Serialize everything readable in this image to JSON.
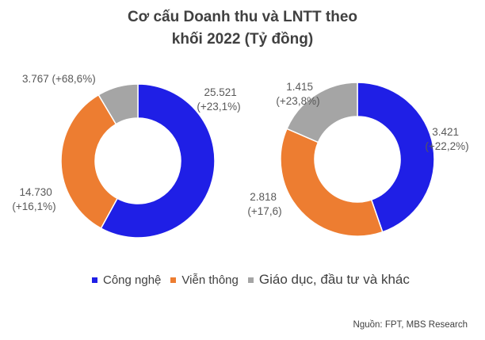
{
  "chart_data": [
    {
      "type": "pie",
      "series_index": 0,
      "categories": [
        "Công nghệ",
        "Viễn thông",
        "Giáo dục, đầu tư và khác"
      ],
      "values": [
        25521,
        14730,
        3767
      ],
      "labels": [
        [
          "25.521",
          "(+23,1%)"
        ],
        [
          "14.730",
          "(+16,1%)"
        ],
        [
          "3.767  (+68,6%)"
        ]
      ],
      "colors": [
        "#1f1fe6",
        "#ed7d31",
        "#a5a5a5"
      ]
    },
    {
      "type": "pie",
      "series_index": 1,
      "categories": [
        "Công nghệ",
        "Viễn thông",
        "Giáo dục, đầu tư và khác"
      ],
      "values": [
        3421,
        2818,
        1415
      ],
      "labels": [
        [
          "3.421",
          "(+22,2%)"
        ],
        [
          "2.818",
          "(+17,6)"
        ],
        [
          "1.415",
          "(+23,8%)"
        ]
      ],
      "colors": [
        "#1f1fe6",
        "#ed7d31",
        "#a5a5a5"
      ]
    }
  ],
  "title": {
    "line1": "Cơ cấu Doanh thu và LNTT theo",
    "line2": "khối 2022 (Tỷ đồng)"
  },
  "legend": [
    {
      "label": "Công nghệ",
      "color": "#1f1fe6"
    },
    {
      "label": "Viễn thông",
      "color": "#ed7d31"
    },
    {
      "label": "Giáo dục, đầu tư và khác",
      "color": "#a5a5a5"
    }
  ],
  "source": "Nguồn: FPT, MBS Research"
}
